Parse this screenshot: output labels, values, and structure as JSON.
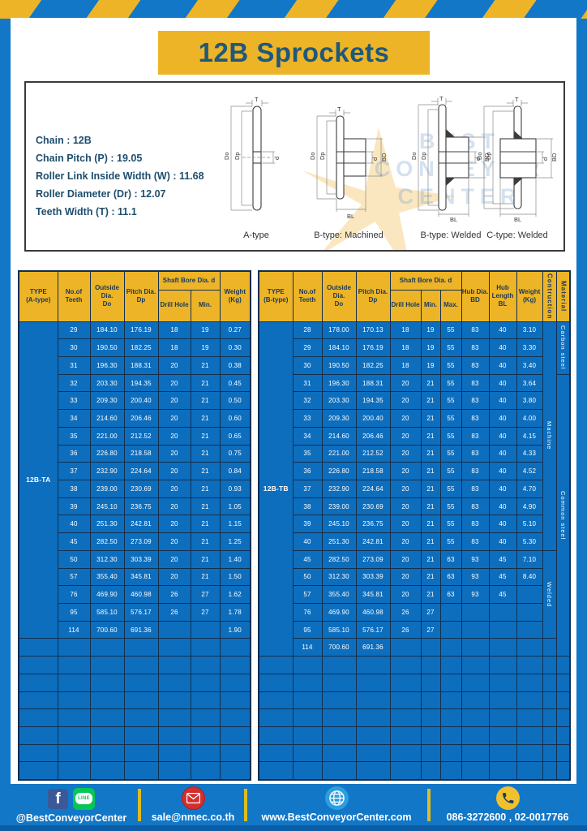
{
  "palette": {
    "frame_blue": "#1377c7",
    "table_blue": "#0d6ebe",
    "accent_yellow": "#edb427",
    "header_navy": "#17395c",
    "title_navy": "#20587a",
    "mail_red": "#d32f2f",
    "line_green": "#06c755",
    "facebook_blue": "#3b5998"
  },
  "header": {
    "title": "12B Sprockets"
  },
  "specs": {
    "lines": [
      "Chain  :  12B",
      "Chain Pitch (P)  :  19.05",
      "Roller Link Inside Width (W) : 11.68",
      "Roller Diameter (Dr)  : 12.07",
      "Teeth Width (T)  :  11.1"
    ],
    "dim_labels": {
      "t": "T",
      "do": "Do",
      "dp": "Dp",
      "d": "d",
      "bd": "BD",
      "bl": "BL"
    },
    "drawing_labels": [
      "A-type",
      "B-type: Machined",
      "B-type: Welded",
      "C-type: Welded"
    ],
    "watermark_lines": [
      "BEST",
      "CONVEYOR",
      "CENTER"
    ]
  },
  "table_a": {
    "headers": {
      "type": "TYPE\n(A-type)",
      "teeth": "No.of\nTeeth",
      "outside": "Outside\nDia.\nDo",
      "pitch": "Pitch Dia.\nDp",
      "shaft_bore": "Shaft Bore Dia. d",
      "drill": "Drill Hole",
      "min": "Min.",
      "weight": "Weight\n(Kg)"
    },
    "type_label": "12B-TA",
    "column_count": 7,
    "empty_row_count": 8,
    "rows": [
      [
        "29",
        "184.10",
        "176.19",
        "18",
        "19",
        "0.27"
      ],
      [
        "30",
        "190.50",
        "182.25",
        "18",
        "19",
        "0.30"
      ],
      [
        "31",
        "196.30",
        "188.31",
        "20",
        "21",
        "0.38"
      ],
      [
        "32",
        "203.30",
        "194.35",
        "20",
        "21",
        "0.45"
      ],
      [
        "33",
        "209.30",
        "200.40",
        "20",
        "21",
        "0.50"
      ],
      [
        "34",
        "214.60",
        "206.46",
        "20",
        "21",
        "0.60"
      ],
      [
        "35",
        "221.00",
        "212.52",
        "20",
        "21",
        "0.65"
      ],
      [
        "36",
        "226.80",
        "218.58",
        "20",
        "21",
        "0.75"
      ],
      [
        "37",
        "232.90",
        "224.64",
        "20",
        "21",
        "0.84"
      ],
      [
        "38",
        "239.00",
        "230.69",
        "20",
        "21",
        "0.93"
      ],
      [
        "39",
        "245.10",
        "236.75",
        "20",
        "21",
        "1.05"
      ],
      [
        "40",
        "251.30",
        "242.81",
        "20",
        "21",
        "1.15"
      ],
      [
        "45",
        "282.50",
        "273.09",
        "20",
        "21",
        "1.25"
      ],
      [
        "50",
        "312.30",
        "303.39",
        "20",
        "21",
        "1.40"
      ],
      [
        "57",
        "355.40",
        "345.81",
        "20",
        "21",
        "1.50"
      ],
      [
        "76",
        "469.90",
        "460.98",
        "26",
        "27",
        "1.62"
      ],
      [
        "95",
        "585.10",
        "576.17",
        "26",
        "27",
        "1.78"
      ],
      [
        "114",
        "700.60",
        "691.36",
        "",
        "",
        "1.90"
      ]
    ]
  },
  "table_b": {
    "headers": {
      "type": "TYPE\n(B-type)",
      "teeth": "No.of\nTeeth",
      "outside": "Outside\nDia.\nDo",
      "pitch": "Pitch Dia.\nDp",
      "shaft_bore": "Shaft Bore Dia. d",
      "drill": "Drill Hole",
      "min": "Min.",
      "max": "Max.",
      "hub_dia": "Hub Dia.\nBD",
      "hub_len": "Hub\nLength\nBL",
      "weight": "Weight\n(Kg)",
      "construction": "Contruction",
      "material": "Material"
    },
    "type_label": "12B-TB",
    "column_count": 12,
    "empty_row_count": 7,
    "construction_spans": [
      {
        "label": "Machine",
        "rows": 13
      },
      {
        "label": "Welded",
        "rows": 5
      },
      {
        "label": "",
        "rows": 1
      }
    ],
    "material_spans": [
      {
        "label": "Carbon steel",
        "rows": 3
      },
      {
        "label": "Common  steel",
        "rows": 16
      }
    ],
    "rows": [
      [
        "28",
        "178.00",
        "170.13",
        "18",
        "19",
        "55",
        "83",
        "40",
        "3.10"
      ],
      [
        "29",
        "184.10",
        "176.19",
        "18",
        "19",
        "55",
        "83",
        "40",
        "3.30"
      ],
      [
        "30",
        "190.50",
        "182.25",
        "18",
        "19",
        "55",
        "83",
        "40",
        "3.40"
      ],
      [
        "31",
        "196.30",
        "188.31",
        "20",
        "21",
        "55",
        "83",
        "40",
        "3.64"
      ],
      [
        "32",
        "203.30",
        "194.35",
        "20",
        "21",
        "55",
        "83",
        "40",
        "3.80"
      ],
      [
        "33",
        "209.30",
        "200.40",
        "20",
        "21",
        "55",
        "83",
        "40",
        "4.00"
      ],
      [
        "34",
        "214.60",
        "206.46",
        "20",
        "21",
        "55",
        "83",
        "40",
        "4.15"
      ],
      [
        "35",
        "221.00",
        "212.52",
        "20",
        "21",
        "55",
        "83",
        "40",
        "4.33"
      ],
      [
        "36",
        "226.80",
        "218.58",
        "20",
        "21",
        "55",
        "83",
        "40",
        "4.52"
      ],
      [
        "37",
        "232.90",
        "224.64",
        "20",
        "21",
        "55",
        "83",
        "40",
        "4.70"
      ],
      [
        "38",
        "239.00",
        "230.69",
        "20",
        "21",
        "55",
        "83",
        "40",
        "4.90"
      ],
      [
        "39",
        "245.10",
        "236.75",
        "20",
        "21",
        "55",
        "83",
        "40",
        "5.10"
      ],
      [
        "40",
        "251.30",
        "242.81",
        "20",
        "21",
        "55",
        "83",
        "40",
        "5.30"
      ],
      [
        "45",
        "282.50",
        "273.09",
        "20",
        "21",
        "63",
        "93",
        "45",
        "7.10"
      ],
      [
        "50",
        "312.30",
        "303.39",
        "20",
        "21",
        "63",
        "93",
        "45",
        "8.40"
      ],
      [
        "57",
        "355.40",
        "345.81",
        "20",
        "21",
        "63",
        "93",
        "45",
        ""
      ],
      [
        "76",
        "469.90",
        "460.98",
        "26",
        "27",
        "",
        "",
        "",
        ""
      ],
      [
        "95",
        "585.10",
        "576.17",
        "26",
        "27",
        "",
        "",
        "",
        ""
      ],
      [
        "114",
        "700.60",
        "691.36",
        "",
        "",
        "",
        "",
        "",
        ""
      ]
    ]
  },
  "footer": {
    "social_handle": "@BestConveyorCenter",
    "email": "sale@nmec.co.th",
    "website": "www.BestConveyorCenter.com",
    "phones": "086-3272600 , 02-0017766",
    "line_label": "LINE",
    "facebook_letter": "f"
  }
}
